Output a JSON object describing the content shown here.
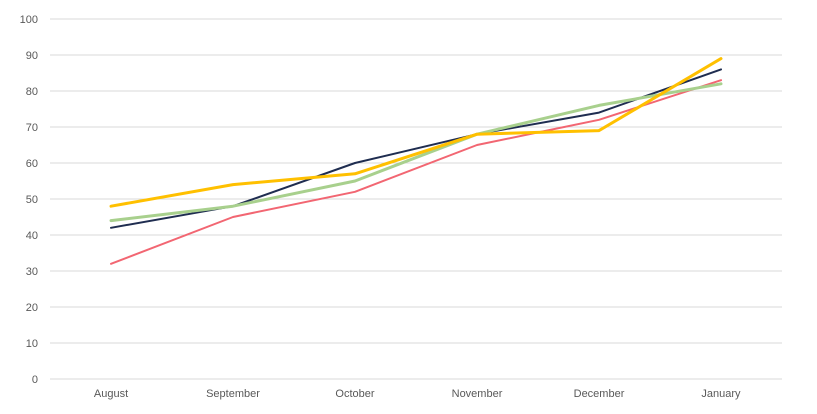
{
  "chart_data": {
    "type": "line",
    "title": "",
    "xlabel": "",
    "ylabel": "",
    "categories": [
      "August",
      "September",
      "October",
      "November",
      "December",
      "January"
    ],
    "y_ticks": [
      "0",
      "10",
      "20",
      "30",
      "40",
      "50",
      "60",
      "70",
      "80",
      "90",
      "100"
    ],
    "ylim": [
      0,
      100
    ],
    "grid": "horizontal",
    "legend": "none",
    "series": [
      {
        "color": "#1f2d50",
        "width": 2,
        "values": [
          42,
          48,
          60,
          68,
          74,
          86
        ]
      },
      {
        "color": "#f26672",
        "width": 2,
        "values": [
          32,
          45,
          52,
          65,
          72,
          83
        ]
      },
      {
        "color": "#a8d08d",
        "width": 3,
        "values": [
          44,
          48,
          55,
          68,
          76,
          82
        ]
      },
      {
        "color": "#ffc000",
        "width": 3,
        "values": [
          48,
          54,
          57,
          68,
          69,
          89
        ]
      }
    ]
  }
}
